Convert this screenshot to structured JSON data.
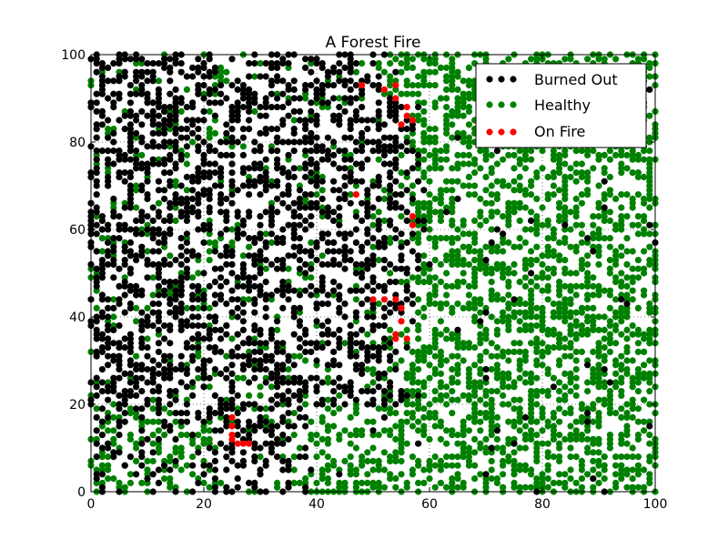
{
  "chart_data": {
    "type": "scatter",
    "title": "A Forest Fire",
    "xlabel": "",
    "ylabel": "",
    "xlim": [
      0,
      100
    ],
    "ylim": [
      0,
      100
    ],
    "x_ticks": [
      0,
      20,
      40,
      60,
      80,
      100
    ],
    "y_ticks": [
      0,
      20,
      40,
      60,
      80,
      100
    ],
    "x_tick_labels": [
      "0",
      "20",
      "40",
      "60",
      "80",
      "100"
    ],
    "y_tick_labels": [
      "0",
      "20",
      "40",
      "60",
      "80",
      "100"
    ],
    "grid": true,
    "legend_position": "top-right",
    "lattice_step": 1,
    "series": [
      {
        "name": "Burned Out",
        "color": "#000000",
        "approx_point_count": 1500,
        "region": "mostly x < 55; extends to x ≈ 57 for y 40-100 and to x ≈ 38 for y 0-20",
        "points": [
          [
            1,
            99
          ],
          [
            3,
            97
          ],
          [
            5,
            95
          ],
          [
            7,
            93
          ],
          [
            9,
            91
          ],
          [
            11,
            89
          ],
          [
            13,
            87
          ],
          [
            15,
            85
          ],
          [
            17,
            83
          ],
          [
            19,
            81
          ],
          [
            21,
            79
          ],
          [
            23,
            77
          ],
          [
            25,
            75
          ],
          [
            27,
            73
          ],
          [
            29,
            71
          ],
          [
            31,
            69
          ],
          [
            33,
            67
          ],
          [
            35,
            65
          ],
          [
            37,
            63
          ],
          [
            39,
            61
          ],
          [
            41,
            59
          ],
          [
            43,
            57
          ],
          [
            45,
            55
          ],
          [
            2,
            60
          ],
          [
            4,
            58
          ],
          [
            6,
            56
          ],
          [
            8,
            54
          ],
          [
            10,
            52
          ],
          [
            12,
            50
          ],
          [
            14,
            48
          ],
          [
            16,
            46
          ],
          [
            18,
            44
          ],
          [
            20,
            42
          ],
          [
            22,
            40
          ],
          [
            24,
            38
          ],
          [
            26,
            36
          ],
          [
            28,
            34
          ],
          [
            30,
            32
          ],
          [
            32,
            30
          ],
          [
            34,
            28
          ],
          [
            36,
            26
          ],
          [
            38,
            24
          ],
          [
            30,
            15
          ],
          [
            32,
            13
          ],
          [
            28,
            12
          ],
          [
            2,
            10
          ],
          [
            4,
            8
          ],
          [
            6,
            6
          ],
          [
            1,
            3
          ],
          [
            47,
            93
          ],
          [
            49,
            85
          ],
          [
            51,
            80
          ],
          [
            53,
            75
          ],
          [
            50,
            70
          ],
          [
            55,
            68
          ],
          [
            52,
            58
          ],
          [
            48,
            52
          ],
          [
            46,
            46
          ]
        ]
      },
      {
        "name": "Healthy",
        "color": "#008000",
        "approx_point_count": 2000,
        "region": "mostly x > 50 plus scattered points within the burned area and along y < 20",
        "points": [
          [
            60,
            99
          ],
          [
            62,
            97
          ],
          [
            65,
            95
          ],
          [
            68,
            93
          ],
          [
            70,
            91
          ],
          [
            73,
            89
          ],
          [
            76,
            87
          ],
          [
            79,
            85
          ],
          [
            82,
            83
          ],
          [
            85,
            81
          ],
          [
            88,
            79
          ],
          [
            91,
            77
          ],
          [
            94,
            75
          ],
          [
            97,
            73
          ],
          [
            99,
            71
          ],
          [
            60,
            60
          ],
          [
            63,
            58
          ],
          [
            66,
            56
          ],
          [
            69,
            54
          ],
          [
            72,
            52
          ],
          [
            75,
            50
          ],
          [
            78,
            48
          ],
          [
            81,
            46
          ],
          [
            84,
            44
          ],
          [
            87,
            42
          ],
          [
            90,
            40
          ],
          [
            93,
            38
          ],
          [
            96,
            36
          ],
          [
            99,
            34
          ],
          [
            58,
            30
          ],
          [
            61,
            28
          ],
          [
            64,
            26
          ],
          [
            67,
            24
          ],
          [
            70,
            22
          ],
          [
            73,
            20
          ],
          [
            76,
            18
          ],
          [
            79,
            16
          ],
          [
            82,
            14
          ],
          [
            85,
            12
          ],
          [
            88,
            10
          ],
          [
            91,
            8
          ],
          [
            94,
            6
          ],
          [
            97,
            4
          ],
          [
            99,
            2
          ],
          [
            10,
            5
          ],
          [
            14,
            3
          ],
          [
            18,
            8
          ],
          [
            22,
            10
          ],
          [
            42,
            14
          ],
          [
            46,
            6
          ],
          [
            50,
            2
          ],
          [
            8,
            98
          ],
          [
            15,
            70
          ],
          [
            12,
            36
          ],
          [
            20,
            24
          ],
          [
            44,
            62
          ]
        ]
      },
      {
        "name": "On Fire",
        "color": "#ff0000",
        "approx_point_count": 35,
        "points": [
          [
            48,
            93
          ],
          [
            52,
            92
          ],
          [
            54,
            93
          ],
          [
            54,
            90
          ],
          [
            56,
            88
          ],
          [
            56,
            86
          ],
          [
            55,
            84
          ],
          [
            57,
            85
          ],
          [
            47,
            68
          ],
          [
            57,
            63
          ],
          [
            57,
            61
          ],
          [
            50,
            44
          ],
          [
            52,
            44
          ],
          [
            54,
            44
          ],
          [
            55,
            42
          ],
          [
            55,
            39
          ],
          [
            54,
            35
          ],
          [
            56,
            35
          ],
          [
            54,
            36
          ],
          [
            25,
            17
          ],
          [
            25,
            15
          ],
          [
            25,
            13
          ],
          [
            25,
            12
          ],
          [
            26,
            11
          ],
          [
            27,
            11
          ],
          [
            28,
            11
          ]
        ]
      }
    ]
  }
}
